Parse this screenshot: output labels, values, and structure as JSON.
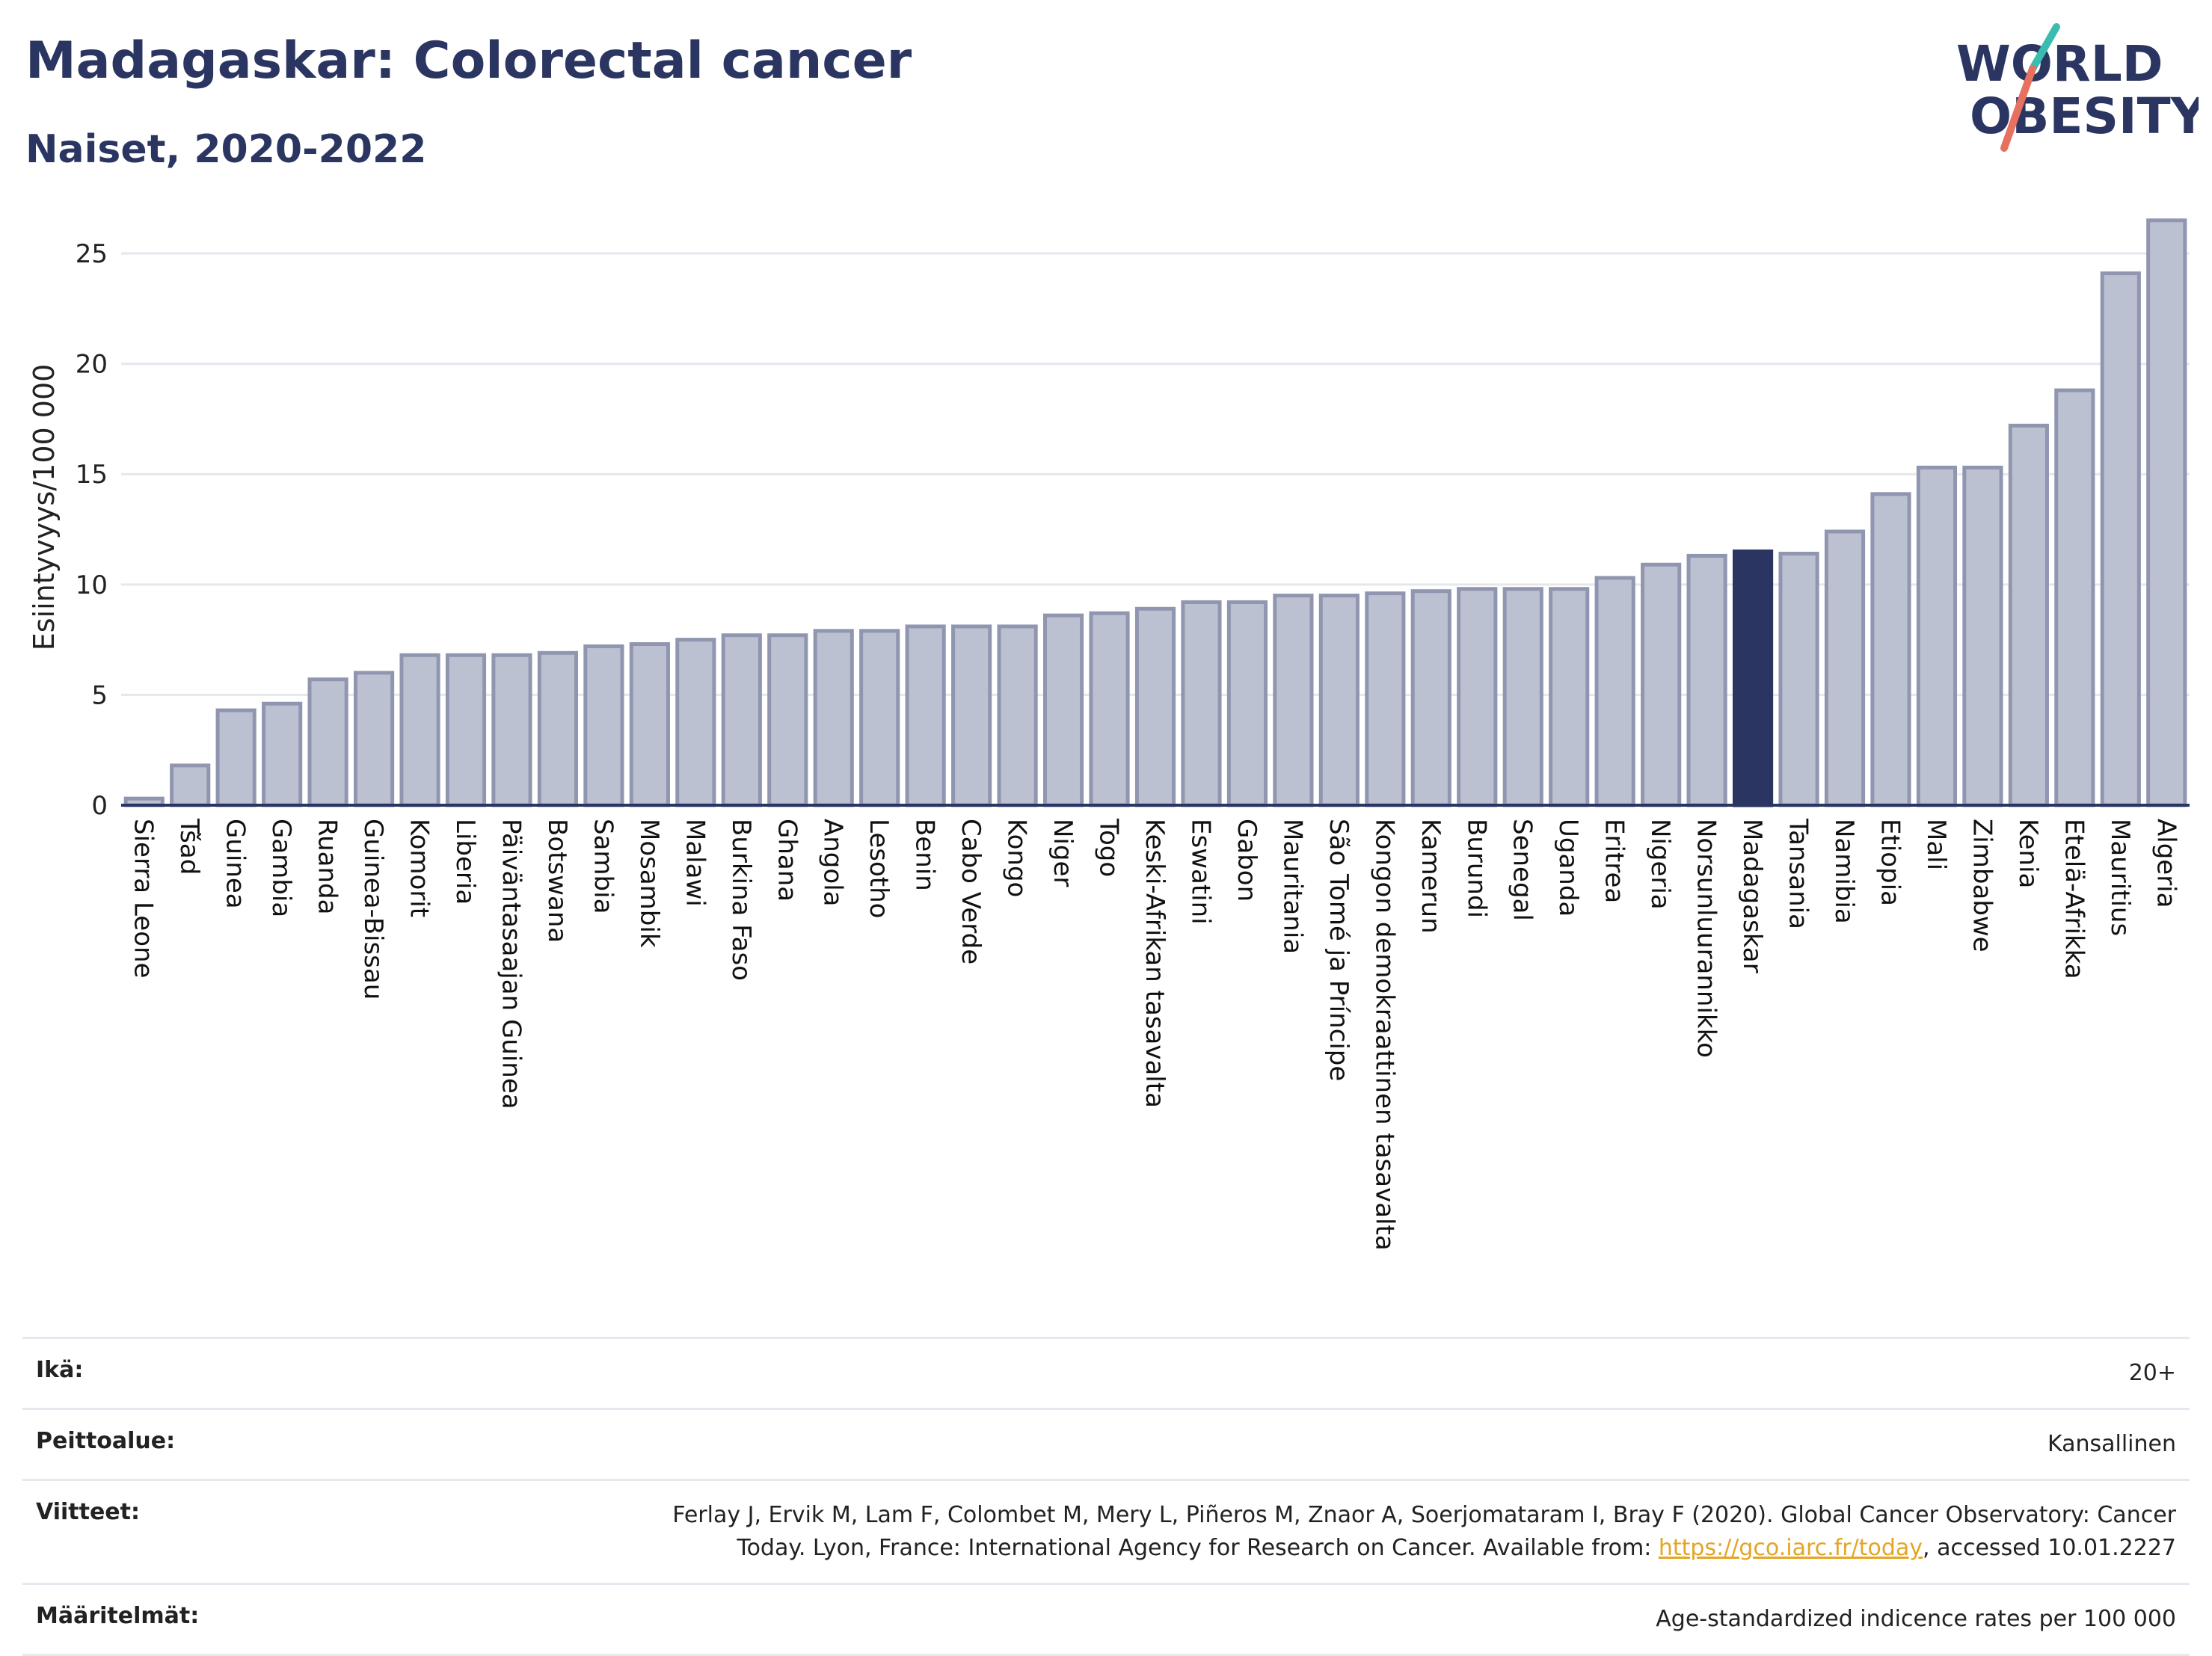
{
  "header": {
    "title": "Madagaskar: Colorectal cancer",
    "subtitle": "Naiset, 2020-2022"
  },
  "logo": {
    "line1": "WORLD",
    "line2": "OBESITY"
  },
  "colors": {
    "bar": "#bcc1d1",
    "bar_edge": "#9096b0",
    "highlight": "#2b3561",
    "title": "#2b3561",
    "link": "#e4a526",
    "logo_teal": "#3bbcb0",
    "logo_coral": "#e8705e"
  },
  "chart_data": {
    "type": "bar",
    "title": "Madagaskar: Colorectal cancer",
    "subtitle": "Naiset, 2020-2022",
    "ylabel": "Esiintyvyys/100 000",
    "xlabel": "",
    "ylim": [
      0,
      27
    ],
    "yticks": [
      0,
      5,
      10,
      15,
      20,
      25
    ],
    "grid": true,
    "highlight": "Madagaskar",
    "categories": [
      "Sierra Leone",
      "Tšad",
      "Guinea",
      "Gambia",
      "Ruanda",
      "Guinea-Bissau",
      "Komorit",
      "Liberia",
      "Päiväntasaajan Guinea",
      "Botswana",
      "Sambia",
      "Mosambik",
      "Malawi",
      "Burkina Faso",
      "Ghana",
      "Angola",
      "Lesotho",
      "Benin",
      "Cabo Verde",
      "Kongo",
      "Niger",
      "Togo",
      "Keski-Afrikan tasavalta",
      "Eswatini",
      "Gabon",
      "Mauritania",
      "São Tomé ja Príncipe",
      "Kongon demokraattinen tasavalta",
      "Kamerun",
      "Burundi",
      "Senegal",
      "Uganda",
      "Eritrea",
      "Nigeria",
      "Norsunluurannikko",
      "Madagaskar",
      "Tansania",
      "Namibia",
      "Etiopia",
      "Mali",
      "Zimbabwe",
      "Kenia",
      "Etelä-Afrikka",
      "Mauritius",
      "Algeria"
    ],
    "values": [
      0.3,
      1.8,
      4.3,
      4.6,
      5.7,
      6.0,
      6.8,
      6.8,
      6.8,
      6.9,
      7.2,
      7.3,
      7.5,
      7.7,
      7.7,
      7.9,
      7.9,
      8.1,
      8.1,
      8.1,
      8.6,
      8.7,
      8.9,
      9.2,
      9.2,
      9.5,
      9.5,
      9.6,
      9.7,
      9.8,
      9.8,
      9.8,
      10.3,
      10.9,
      11.3,
      11.5,
      11.4,
      12.4,
      14.1,
      15.3,
      15.3,
      17.2,
      18.8,
      24.1,
      26.5
    ]
  },
  "info": [
    {
      "label": "Ikä:",
      "value": "20+"
    },
    {
      "label": "Peittoalue:",
      "value": "Kansallinen"
    },
    {
      "label": "Viitteet:",
      "value_line1": "Ferlay J, Ervik M, Lam F, Colombet M, Mery L, Piñeros M, Znaor A, Soerjomataram I, Bray F (2020). Global Cancer Observatory: Cancer",
      "value_line2_pre": "Today. Lyon, France: International Agency for Research on Cancer. Available from: ",
      "link": "https://gco.iarc.fr/today",
      "value_line2_post": ", accessed 10.01.2227"
    },
    {
      "label": "Määritelmät:",
      "value": "Age-standardized indicence rates per 100 000"
    }
  ]
}
